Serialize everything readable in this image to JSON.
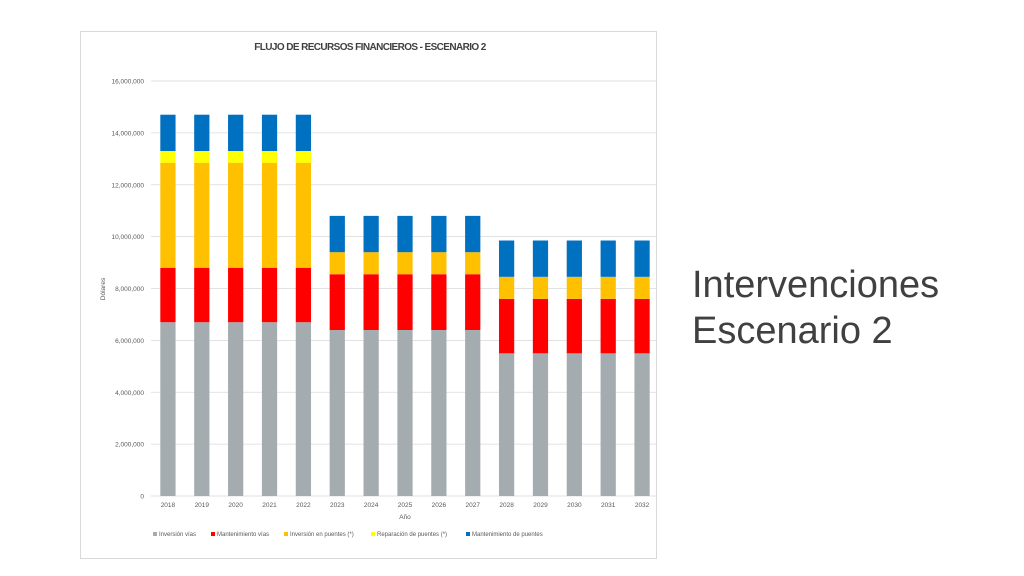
{
  "slide": {
    "title_line1": "Intervenciones",
    "title_line2": "Escenario 2"
  },
  "chart_data": {
    "type": "bar",
    "stacked": true,
    "title": "FLUJO DE RECURSOS FINANCIEROS - ESCENARIO 2",
    "xlabel": "Año",
    "ylabel": "Dólares",
    "ylim": [
      0,
      16000000
    ],
    "yticks": [
      0,
      2000000,
      4000000,
      6000000,
      8000000,
      10000000,
      12000000,
      14000000,
      16000000
    ],
    "ytick_labels": [
      "0",
      "2,000,000",
      "4,000,000",
      "6,000,000",
      "8,000,000",
      "10,000,000",
      "12,000,000",
      "14,000,000",
      "16,000,000"
    ],
    "grid": true,
    "legend_position": "bottom",
    "categories": [
      "2018",
      "2019",
      "2020",
      "2021",
      "2022",
      "2023",
      "2024",
      "2025",
      "2026",
      "2027",
      "2028",
      "2029",
      "2030",
      "2031",
      "2032"
    ],
    "series": [
      {
        "name": "Inversión vías",
        "color": "#a5acb0",
        "values": [
          6700000,
          6700000,
          6700000,
          6700000,
          6700000,
          6400000,
          6400000,
          6400000,
          6400000,
          6400000,
          5500000,
          5500000,
          5500000,
          5500000,
          5500000
        ]
      },
      {
        "name": "Mantenimiento vías",
        "color": "#ff0000",
        "values": [
          2100000,
          2100000,
          2100000,
          2100000,
          2100000,
          2150000,
          2150000,
          2150000,
          2150000,
          2150000,
          2100000,
          2100000,
          2100000,
          2100000,
          2100000
        ]
      },
      {
        "name": "Inversión en puentes (*)",
        "color": "#ffc000",
        "values": [
          4050000,
          4050000,
          4050000,
          4050000,
          4050000,
          850000,
          850000,
          850000,
          850000,
          850000,
          850000,
          850000,
          850000,
          850000,
          850000
        ]
      },
      {
        "name": "Reparación de puentes (*)",
        "color": "#ffff00",
        "values": [
          450000,
          450000,
          450000,
          450000,
          450000,
          0,
          0,
          0,
          0,
          0,
          0,
          0,
          0,
          0,
          0
        ]
      },
      {
        "name": "Mantenimiento de puentes",
        "color": "#0070c0",
        "values": [
          1400000,
          1400000,
          1400000,
          1400000,
          1400000,
          1400000,
          1400000,
          1400000,
          1400000,
          1400000,
          1400000,
          1400000,
          1400000,
          1400000,
          1400000
        ]
      }
    ]
  }
}
